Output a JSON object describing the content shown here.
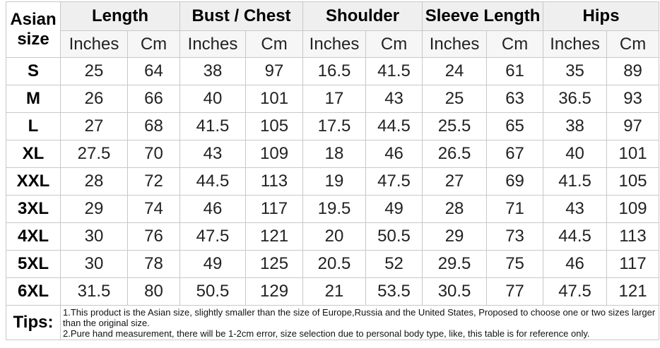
{
  "chart_data": {
    "type": "table",
    "corner_label": "Asian size",
    "column_groups": [
      "Length",
      "Bust / Chest",
      "Shoulder",
      "Sleeve Length",
      "Hips"
    ],
    "unit_labels": [
      "Inches",
      "Cm"
    ],
    "sizes": [
      "S",
      "M",
      "L",
      "XL",
      "XXL",
      "3XL",
      "4XL",
      "5XL",
      "6XL"
    ],
    "rows": [
      [
        25,
        64,
        38,
        97,
        16.5,
        41.5,
        24,
        61,
        35,
        89
      ],
      [
        26,
        66,
        40,
        101,
        17,
        43,
        25,
        63,
        36.5,
        93
      ],
      [
        27,
        68,
        41.5,
        105,
        17.5,
        44.5,
        25.5,
        65,
        38,
        97
      ],
      [
        27.5,
        70,
        43,
        109,
        18,
        46,
        26.5,
        67,
        40,
        101
      ],
      [
        28,
        72,
        44.5,
        113,
        19,
        47.5,
        27,
        69,
        41.5,
        105
      ],
      [
        29,
        74,
        46,
        117,
        19.5,
        49,
        28,
        71,
        43,
        109
      ],
      [
        30,
        76,
        47.5,
        121,
        20,
        50.5,
        29,
        73,
        44.5,
        113
      ],
      [
        30,
        78,
        49,
        125,
        20.5,
        52,
        29.5,
        75,
        46,
        117
      ],
      [
        31.5,
        80,
        50.5,
        129,
        21,
        53.5,
        30.5,
        77,
        47.5,
        121
      ]
    ],
    "tips_label": "Tips:",
    "tips": [
      "1.This product is the Asian size, slightly smaller than the size of Europe,Russia and the United States, Proposed to choose one or two sizes larger than the original size.",
      "2.Pure hand measurement, there will be 1-2cm error, size selection due to personal body type, like, this table is for reference only."
    ],
    "colors": {
      "inches_text": "#fe0000",
      "cm_text": "#222222",
      "group_header_bg": "#efefef",
      "unit_header_bg": "#f6f6f6",
      "border": "#c8c8c8"
    }
  }
}
